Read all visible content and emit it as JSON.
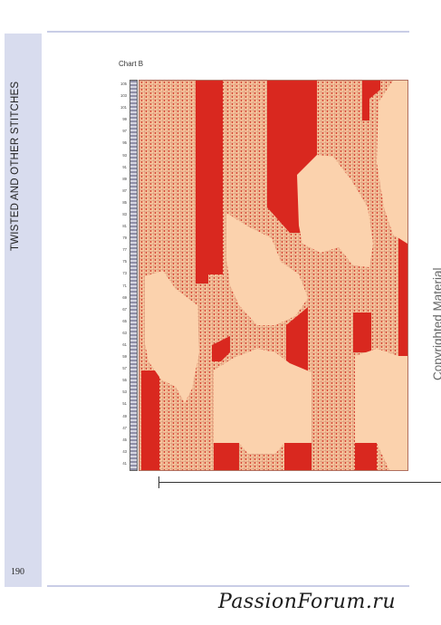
{
  "header": {
    "sidebar_title": "TWISTED AND OTHER STITCHES"
  },
  "footer": {
    "page_number": "190",
    "watermark": "PassionForum.ru"
  },
  "chart": {
    "label": "Chart B",
    "row_labels": [
      "105",
      "103",
      "101",
      "99",
      "97",
      "95",
      "93",
      "91",
      "89",
      "87",
      "85",
      "83",
      "81",
      "79",
      "77",
      "75",
      "73",
      "71",
      "69",
      "67",
      "65",
      "63",
      "61",
      "59",
      "57",
      "55",
      "53",
      "51",
      "49",
      "47",
      "45",
      "43",
      "41"
    ],
    "colors": {
      "background": "#f8c9a0",
      "contrast": "#d9281f",
      "dot": "#d44a3a"
    }
  },
  "side_text": {
    "copyright": "Copyrighted Material"
  }
}
